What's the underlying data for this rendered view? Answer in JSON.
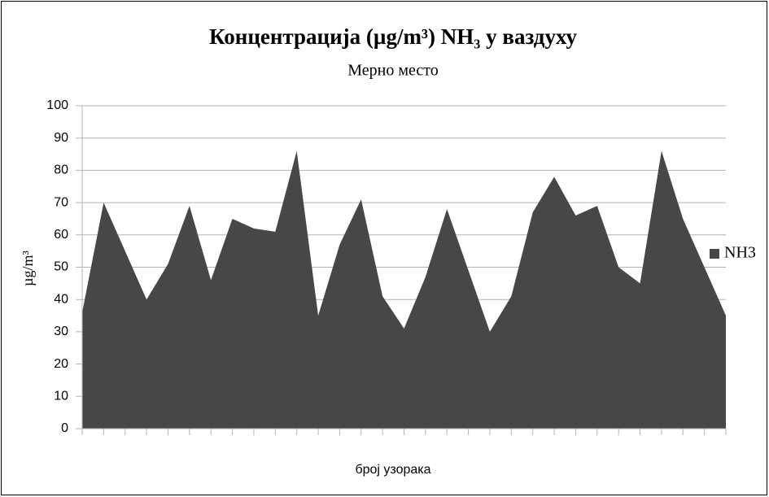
{
  "chart_data": {
    "type": "area",
    "title": "Концентрација (µg/m³) NH₃ у ваздуху",
    "subtitle": "Мерно место",
    "ylabel": "µg/m³",
    "xlabel": "број узорака",
    "categories": [
      null,
      null,
      null,
      null,
      null,
      null,
      null,
      null,
      null,
      null,
      null,
      null,
      null,
      null,
      null,
      null,
      null,
      null,
      null,
      null,
      null,
      null,
      null,
      null,
      null,
      null,
      null,
      null,
      null,
      null,
      null
    ],
    "series": [
      {
        "name": "NH3",
        "color": "#474747",
        "values": [
          36,
          70,
          55,
          40,
          51,
          69,
          46,
          65,
          62,
          61,
          86,
          35,
          57,
          71,
          41,
          31,
          47,
          68,
          49,
          30,
          41,
          67,
          78,
          66,
          69,
          50,
          45,
          86,
          65,
          50,
          35
        ]
      }
    ],
    "ylim": [
      0,
      100
    ],
    "yticks": [
      0,
      10,
      20,
      30,
      40,
      50,
      60,
      70,
      80,
      90,
      100
    ],
    "grid": true,
    "legend": "right"
  }
}
